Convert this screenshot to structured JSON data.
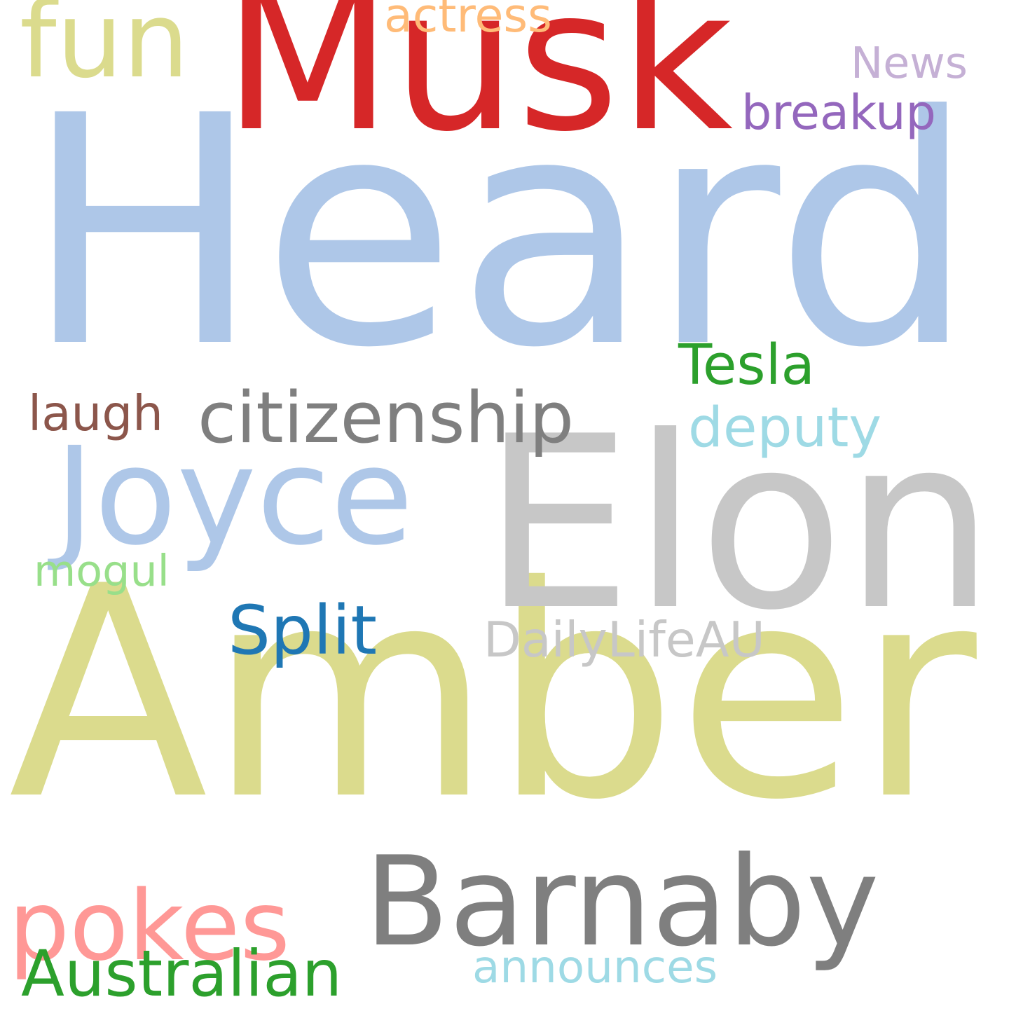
{
  "word_cloud": {
    "background": "#ffffff",
    "words": [
      {
        "id": "heard",
        "text": "Heard",
        "color": "#aec7e8"
      },
      {
        "id": "amber",
        "text": "Amber",
        "color": "#dbdb8d"
      },
      {
        "id": "musk",
        "text": "Musk",
        "color": "#d62728"
      },
      {
        "id": "elon",
        "text": "Elon",
        "color": "#c7c7c7"
      },
      {
        "id": "barnaby",
        "text": "Barnaby",
        "color": "#7f7f7f"
      },
      {
        "id": "joyce",
        "text": "Joyce",
        "color": "#aec7e8"
      },
      {
        "id": "fun",
        "text": "fun",
        "color": "#dbdb8d"
      },
      {
        "id": "pokes",
        "text": "pokes",
        "color": "#ff9896"
      },
      {
        "id": "citizenship",
        "text": "citizenship",
        "color": "#7f7f7f"
      },
      {
        "id": "australian",
        "text": "Australian",
        "color": "#2ca02c"
      },
      {
        "id": "deputy",
        "text": "deputy",
        "color": "#9edae5"
      },
      {
        "id": "announces",
        "text": "announces",
        "color": "#9edae5"
      },
      {
        "id": "split",
        "text": "Split",
        "color": "#1f77b4"
      },
      {
        "id": "dailylifeau",
        "text": "DailyLifeAU",
        "color": "#c7c7c7"
      },
      {
        "id": "breakup",
        "text": "breakup",
        "color": "#9467bd"
      },
      {
        "id": "news",
        "text": "News",
        "color": "#c5b0d5"
      },
      {
        "id": "tesla",
        "text": "Tesla",
        "color": "#2ca02c"
      },
      {
        "id": "laugh",
        "text": "laugh",
        "color": "#8c564b"
      },
      {
        "id": "mogul",
        "text": "mogul",
        "color": "#98df8a"
      },
      {
        "id": "actress",
        "text": "actress",
        "color": "#ffbb78"
      }
    ]
  }
}
